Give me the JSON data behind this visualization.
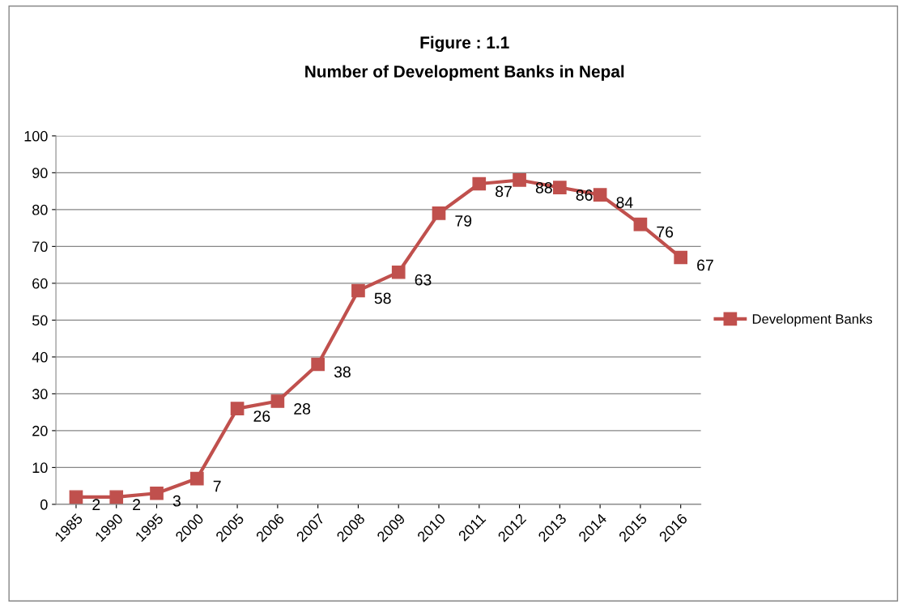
{
  "chart_data": {
    "type": "line",
    "title": "Figure : 1.1",
    "subtitle": "Number of Development Banks in Nepal",
    "categories": [
      "1985",
      "1990",
      "1995",
      "2000",
      "2005",
      "2006",
      "2007",
      "2008",
      "2009",
      "2010",
      "2011",
      "2012",
      "2013",
      "2014",
      "2015",
      "2016"
    ],
    "series": [
      {
        "name": "Development Banks",
        "color": "#c0504d",
        "values": [
          2,
          2,
          3,
          7,
          26,
          28,
          38,
          58,
          63,
          79,
          87,
          88,
          86,
          84,
          76,
          67
        ]
      }
    ],
    "ylim": [
      0,
      100
    ],
    "yticks": [
      0,
      10,
      20,
      30,
      40,
      50,
      60,
      70,
      80,
      90,
      100
    ],
    "grid": "y",
    "legend": "right",
    "marker": "square",
    "line_style": "solid",
    "data_labels": true
  }
}
